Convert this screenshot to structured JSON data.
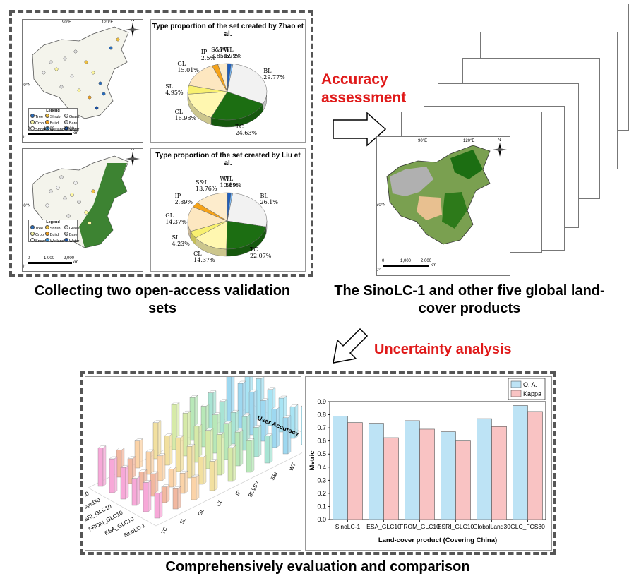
{
  "captions": {
    "validation_sets": "Collecting two open-access validation sets",
    "products": "The SinoLC-1 and other five global land-cover products",
    "comparison": "Comprehensively evaluation and comparison"
  },
  "steps": {
    "accuracy": "Accuracy assessment",
    "uncertainty": "Uncertainty analysis"
  },
  "map_common": {
    "lon_90": "90°E",
    "lon_120": "120°E",
    "lat_30": "30°N",
    "lat_0": "0°",
    "north": "N",
    "scale": [
      "0",
      "1,000",
      "2,000"
    ],
    "scale_unit": "km"
  },
  "legend": {
    "title": "Legend",
    "items": [
      {
        "label": "Tree",
        "color": "#2a6ebd"
      },
      {
        "label": "Shrub",
        "color": "#f0c040"
      },
      {
        "label": "Grass",
        "color": "#e8e8e8"
      },
      {
        "label": "Crop",
        "color": "#f4f0a0"
      },
      {
        "label": "Build",
        "color": "#f0a020"
      },
      {
        "label": "Bare",
        "color": "#c8c8c8"
      },
      {
        "label": "Snow",
        "color": "#ffffff"
      },
      {
        "label": "Wetland",
        "color": "#3a8fd0"
      },
      {
        "label": "Water",
        "color": "#1a4fa0"
      }
    ]
  },
  "pies": [
    {
      "title": "Type proportion of the set created by Zhao et al.",
      "slices": [
        {
          "code": "WT",
          "value": 1.59,
          "label": "1.59%",
          "color": "#1f5fbf"
        },
        {
          "code": "WL",
          "value": 0.72,
          "label": "0.72%",
          "color": "#7fc0ff"
        },
        {
          "code": "BL",
          "value": 29.77,
          "label": "29.77%",
          "color": "#f2f2f2"
        },
        {
          "code": "TC",
          "value": 24.63,
          "label": "24.63%",
          "color": "#1c6e12"
        },
        {
          "code": "CL",
          "value": 16.98,
          "label": "16.98%",
          "color": "#fff7b0"
        },
        {
          "code": "SL",
          "value": 4.95,
          "label": "4.95%",
          "color": "#f8f070"
        },
        {
          "code": "GL",
          "value": 15.01,
          "label": "15.01%",
          "color": "#fde7c0"
        },
        {
          "code": "IP",
          "value": 2.5,
          "label": "2.5%",
          "color": "#f5a31a"
        },
        {
          "code": "S&I",
          "value": 3.85,
          "label": "3.85%",
          "color": "#fdeccc"
        }
      ]
    },
    {
      "title": "Type proportion of the set created by Liu et al.",
      "slices": [
        {
          "code": "WT",
          "value": 1.51,
          "label": "1.51%",
          "color": "#1f5fbf"
        },
        {
          "code": "WL",
          "value": 0.69,
          "label": "0.69%",
          "color": "#7fc0ff"
        },
        {
          "code": "BL",
          "value": 26.1,
          "label": "26.1%",
          "color": "#f2f2f2"
        },
        {
          "code": "TC",
          "value": 22.07,
          "label": "22.07%",
          "color": "#1c6e12"
        },
        {
          "code": "CL",
          "value": 14.37,
          "label": "14.37%",
          "color": "#fff7b0"
        },
        {
          "code": "SL",
          "value": 4.23,
          "label": "4.23%",
          "color": "#f8f070"
        },
        {
          "code": "GL",
          "value": 14.37,
          "label": "14.37%",
          "color": "#fde7c0"
        },
        {
          "code": "IP",
          "value": 2.89,
          "label": "2.89%",
          "color": "#f5a31a"
        },
        {
          "code": "S&I",
          "value": 13.76,
          "label": "13.76%",
          "color": "#fdeccc"
        }
      ]
    }
  ],
  "bar3d": {
    "title": "User Accuracy",
    "products": [
      "SinoLC-1",
      "ESA_GLC10",
      "FROM_GLC10",
      "ESRI_GLC10",
      "Globland30",
      "GLC_FCS30"
    ],
    "classes": [
      "TC",
      "SL",
      "GL",
      "CL",
      "IP",
      "BL&SV",
      "S&I",
      "WT",
      "WL"
    ]
  },
  "chart_data": {
    "type": "bar",
    "categories": [
      "SinoLC-1",
      "ESA_GLC10",
      "FROM_GLC10",
      "ESRI_GLC10",
      "GlobalLand30",
      "GLC_FCS30"
    ],
    "series": [
      {
        "name": "O. A.",
        "values": [
          0.79,
          0.735,
          0.755,
          0.67,
          0.77,
          0.87
        ],
        "color": "#bde3f5"
      },
      {
        "name": "Kappa",
        "values": [
          0.74,
          0.625,
          0.69,
          0.6,
          0.71,
          0.825
        ],
        "color": "#f9c3c3"
      }
    ],
    "xlabel": "Land-cover product (Covering China)",
    "ylabel": "Metric",
    "ylim": [
      0,
      0.9
    ],
    "yticks": [
      "0.0",
      "0.1",
      "0.2",
      "0.3",
      "0.4",
      "0.5",
      "0.6",
      "0.7",
      "0.8",
      "0.9"
    ],
    "legend_position": "top-right"
  }
}
